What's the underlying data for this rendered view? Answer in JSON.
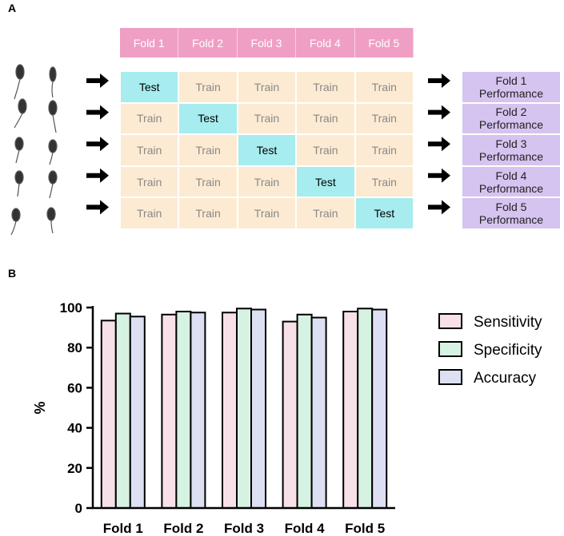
{
  "panel_a": {
    "label": "A",
    "fold_headers": [
      "Fold 1",
      "Fold 2",
      "Fold 3",
      "Fold 4",
      "Fold 5"
    ],
    "grid": [
      [
        "Test",
        "Train",
        "Train",
        "Train",
        "Train"
      ],
      [
        "Train",
        "Test",
        "Train",
        "Train",
        "Train"
      ],
      [
        "Train",
        "Train",
        "Test",
        "Train",
        "Train"
      ],
      [
        "Train",
        "Train",
        "Train",
        "Test",
        "Train"
      ],
      [
        "Train",
        "Train",
        "Train",
        "Train",
        "Test"
      ]
    ],
    "performance": [
      "Fold 1 Performance",
      "Fold 2 Performance",
      "Fold 3 Performance",
      "Fold 4 Performance",
      "Fold 5 Performance"
    ]
  },
  "panel_b_label": "B",
  "chart_data": {
    "type": "bar",
    "y_label": "%",
    "categories": [
      "Fold 1",
      "Fold 2",
      "Fold 3",
      "Fold 4",
      "Fold 5"
    ],
    "series": [
      {
        "name": "Sensitivity",
        "color": "#f8e0e8",
        "values": [
          93.5,
          96.5,
          97.5,
          93,
          98
        ]
      },
      {
        "name": "Specificity",
        "color": "#d6f2e2",
        "values": [
          97,
          98,
          99.5,
          96.5,
          99.5
        ]
      },
      {
        "name": "Accuracy",
        "color": "#dde0f3",
        "values": [
          95.5,
          97.5,
          99,
          95,
          99
        ]
      }
    ],
    "ylim": [
      0,
      100
    ],
    "yticks": [
      0,
      20,
      40,
      60,
      80,
      100
    ]
  }
}
